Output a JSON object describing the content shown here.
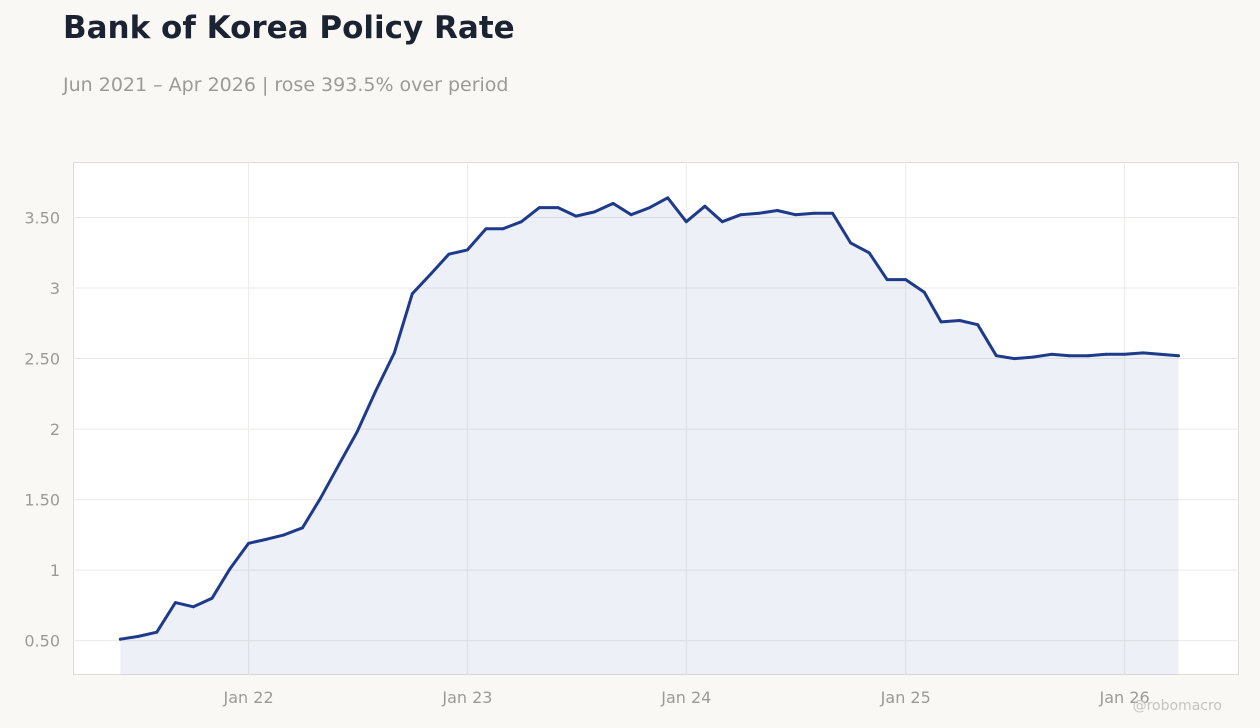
{
  "header": {
    "title": "Bank of Korea Policy Rate",
    "subtitle": "Jun 2021 – Apr 2026 | rose 393.5% over period"
  },
  "watermark": "@robomacro",
  "colors": {
    "background": "#f9f8f5",
    "plot_background": "#ffffff",
    "line": "#1e3a8a",
    "area_fill": "#1e3a8a",
    "grid": "#ecebe8",
    "axis_text": "#9a9a96",
    "title": "#1b2333"
  },
  "chart_data": {
    "type": "area",
    "title": "Bank of Korea Policy Rate",
    "subtitle": "Jun 2021 – Apr 2026 | rose 393.5% over period",
    "xlabel": "",
    "ylabel": "",
    "xlim": [
      "2021-03-15",
      "2026-07-10"
    ],
    "ylim": [
      0.26,
      3.89
    ],
    "grid": true,
    "legend": "none",
    "x_ticks": [
      {
        "date": "2022-01-01",
        "label": "Jan 22"
      },
      {
        "date": "2023-01-01",
        "label": "Jan 23"
      },
      {
        "date": "2024-01-01",
        "label": "Jan 24"
      },
      {
        "date": "2025-01-01",
        "label": "Jan 25"
      },
      {
        "date": "2026-01-01",
        "label": "Jan 26"
      }
    ],
    "y_ticks": [
      {
        "value": 0.5,
        "label": "0.50"
      },
      {
        "value": 1.0,
        "label": "1"
      },
      {
        "value": 1.5,
        "label": "1.50"
      },
      {
        "value": 2.0,
        "label": "2"
      },
      {
        "value": 2.5,
        "label": "2.50"
      },
      {
        "value": 3.0,
        "label": "3"
      },
      {
        "value": 3.5,
        "label": "3.50"
      }
    ],
    "series": [
      {
        "x": [
          "2021-06-01",
          "2021-07-01",
          "2021-08-01",
          "2021-09-01",
          "2021-10-01",
          "2021-11-01",
          "2021-12-01",
          "2022-01-01",
          "2022-02-01",
          "2022-03-01",
          "2022-04-01",
          "2022-05-01",
          "2022-06-01",
          "2022-07-01",
          "2022-08-01",
          "2022-09-01",
          "2022-10-01",
          "2022-11-01",
          "2022-12-01",
          "2023-01-01",
          "2023-02-01",
          "2023-03-01",
          "2023-04-01",
          "2023-05-01",
          "2023-06-01",
          "2023-07-01",
          "2023-08-01",
          "2023-09-01",
          "2023-10-01",
          "2023-11-01",
          "2023-12-01",
          "2024-01-01",
          "2024-02-01",
          "2024-03-01",
          "2024-04-01",
          "2024-05-01",
          "2024-06-01",
          "2024-07-01",
          "2024-08-01",
          "2024-09-01",
          "2024-10-01",
          "2024-11-01",
          "2024-12-01",
          "2025-01-01",
          "2025-02-01",
          "2025-03-01",
          "2025-04-01",
          "2025-05-01",
          "2025-06-01",
          "2025-07-01",
          "2025-08-01",
          "2025-09-01",
          "2025-10-01",
          "2025-11-01",
          "2025-12-01",
          "2026-01-01",
          "2026-02-01",
          "2026-03-01",
          "2026-04-01"
        ],
        "values": [
          0.51,
          0.53,
          0.56,
          0.77,
          0.74,
          0.8,
          1.01,
          1.19,
          1.22,
          1.25,
          1.3,
          1.51,
          1.75,
          1.98,
          2.27,
          2.54,
          2.96,
          3.1,
          3.24,
          3.27,
          3.42,
          3.42,
          3.47,
          3.57,
          3.57,
          3.51,
          3.54,
          3.6,
          3.52,
          3.57,
          3.64,
          3.47,
          3.58,
          3.47,
          3.52,
          3.53,
          3.55,
          3.52,
          3.53,
          3.53,
          3.32,
          3.25,
          3.06,
          3.06,
          2.97,
          2.76,
          2.77,
          2.74,
          2.52,
          2.5,
          2.51,
          2.53,
          2.52,
          2.52,
          2.53,
          2.53,
          2.54,
          2.53,
          2.52
        ]
      }
    ]
  }
}
